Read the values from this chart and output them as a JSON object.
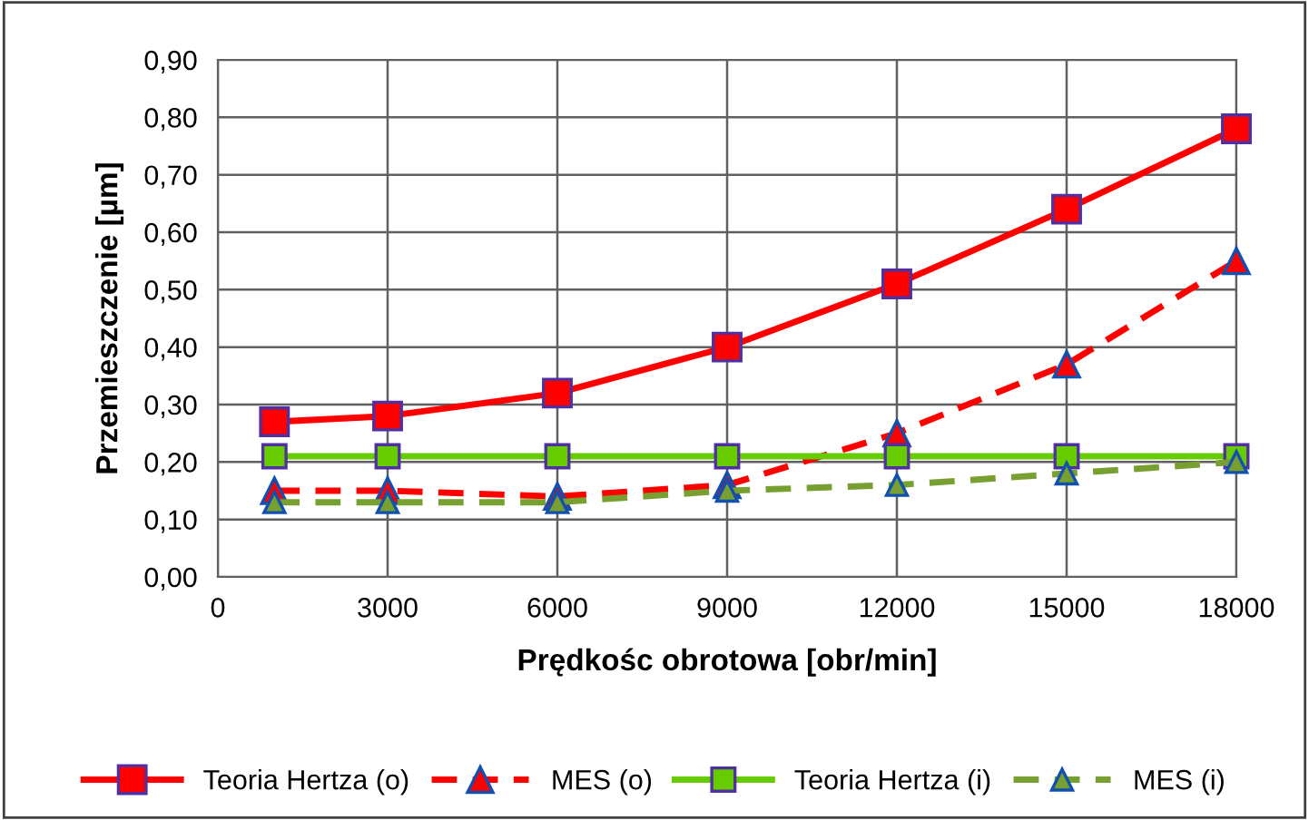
{
  "chart_data": {
    "type": "line",
    "xlabel": "Prędkośc obrotowa [obr/min]",
    "ylabel": "Przemieszczenie [µm]",
    "x": [
      1000,
      3000,
      6000,
      9000,
      12000,
      15000,
      18000
    ],
    "series": [
      {
        "name": "Teoria Hertza (o)",
        "color": "#ff0000",
        "marker": "square",
        "line_style": "solid",
        "values": [
          0.27,
          0.28,
          0.32,
          0.4,
          0.51,
          0.64,
          0.78
        ]
      },
      {
        "name": "MES (o)",
        "color": "#ff0000",
        "marker": "triangle",
        "line_style": "dashed",
        "values": [
          0.15,
          0.15,
          0.14,
          0.16,
          0.25,
          0.37,
          0.55
        ]
      },
      {
        "name": "Teoria Hertza (i)",
        "color": "#66cc00",
        "marker": "square",
        "line_style": "solid",
        "values": [
          0.21,
          0.21,
          0.21,
          0.21,
          0.21,
          0.21,
          0.21
        ]
      },
      {
        "name": "MES (i)",
        "color": "#77a030",
        "marker": "triangle",
        "line_style": "dashed",
        "values": [
          0.13,
          0.13,
          0.13,
          0.15,
          0.16,
          0.18,
          0.2
        ]
      }
    ],
    "xlim": [
      0,
      18000
    ],
    "xticks": [
      0,
      3000,
      6000,
      9000,
      12000,
      15000,
      18000
    ],
    "ylim": [
      0,
      0.9
    ],
    "yticks": [
      {
        "value": 0,
        "label": "0,00"
      },
      {
        "value": 0.1,
        "label": "0,10"
      },
      {
        "value": 0.2,
        "label": "0,20"
      },
      {
        "value": 0.3,
        "label": "0,30"
      },
      {
        "value": 0.4,
        "label": "0,40"
      },
      {
        "value": 0.5,
        "label": "0,50"
      },
      {
        "value": 0.6,
        "label": "0,60"
      },
      {
        "value": 0.7,
        "label": "0,70"
      },
      {
        "value": 0.8,
        "label": "0,80"
      },
      {
        "value": 0.9,
        "label": "0,90"
      }
    ],
    "grid": true,
    "legend": "bottom"
  }
}
